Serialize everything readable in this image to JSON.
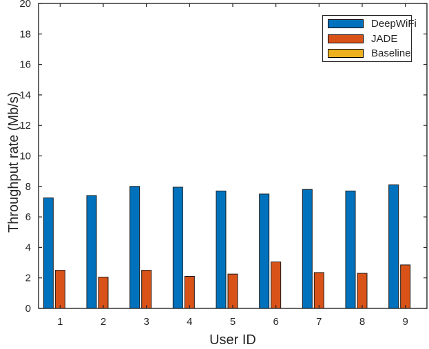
{
  "chart_data": {
    "type": "bar",
    "title": "",
    "xlabel": "User ID",
    "ylabel": "Throughput rate (Mb/s)",
    "categories": [
      "1",
      "2",
      "3",
      "4",
      "5",
      "6",
      "7",
      "8",
      "9"
    ],
    "series": [
      {
        "name": "DeepWiFi",
        "color": "#0072BD",
        "values": [
          7.25,
          7.4,
          8.0,
          7.95,
          7.7,
          7.5,
          7.8,
          7.7,
          8.1
        ]
      },
      {
        "name": "JADE",
        "color": "#D95319",
        "values": [
          2.5,
          2.05,
          2.5,
          2.1,
          2.25,
          3.05,
          2.35,
          2.3,
          2.85
        ]
      },
      {
        "name": "Baseline",
        "color": "#EDB120",
        "values": [
          0,
          0,
          0,
          0,
          0,
          0,
          0,
          0,
          0
        ]
      }
    ],
    "ylim": [
      0,
      20
    ],
    "yticks": [
      0,
      2,
      4,
      6,
      8,
      10,
      12,
      14,
      16,
      18,
      20
    ],
    "grid": false,
    "legend_position": "top-right",
    "axis_color": "#262626",
    "bar_edge_color": "#1a1a1a",
    "bar_group_style": "grouped"
  }
}
